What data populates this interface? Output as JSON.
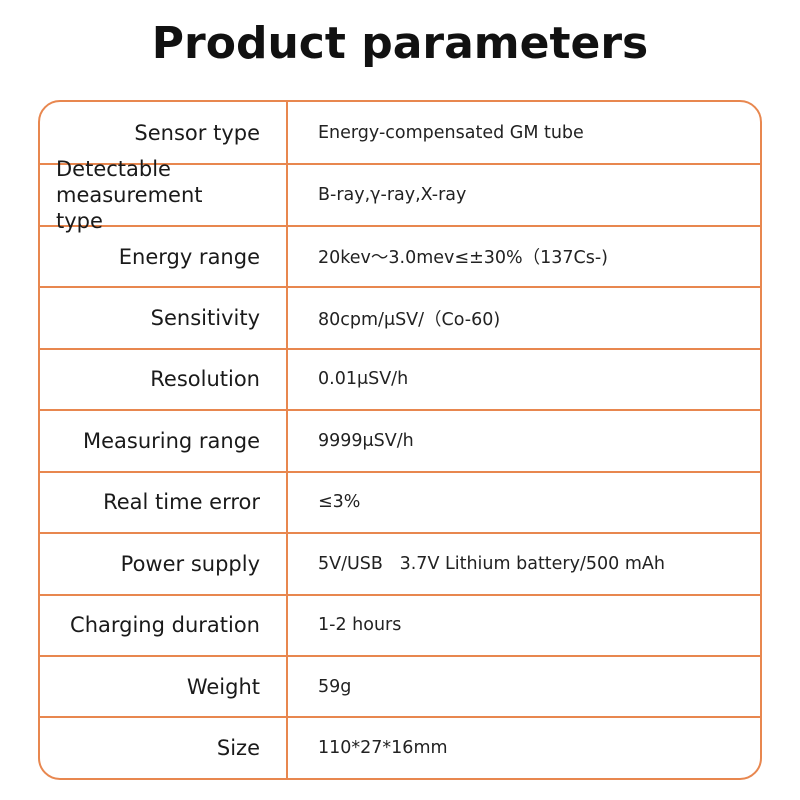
{
  "header": {
    "title": "Product parameters"
  },
  "table": {
    "rows": [
      [
        "Sensor type",
        "Energy-compensated GM tube"
      ],
      [
        "Detectable measurement type",
        "B-ray,γ-ray,X-ray"
      ],
      [
        "Energy range",
        "20kev～3.0mev≤±30%（137Cs-)"
      ],
      [
        "Sensitivity",
        "80cpm/μSV/（Co-60)"
      ],
      [
        "Resolution",
        "0.01μSV/h"
      ],
      [
        "Measuring range",
        "9999μSV/h"
      ],
      [
        "Real time error",
        "≤3%"
      ],
      [
        "Power supply",
        "5V/USB   3.7V Lithium battery/500 mAh"
      ],
      [
        "Charging duration",
        "1-2 hours"
      ],
      [
        "Weight",
        "59g"
      ],
      [
        "Size",
        "110*27*16mm"
      ]
    ]
  }
}
